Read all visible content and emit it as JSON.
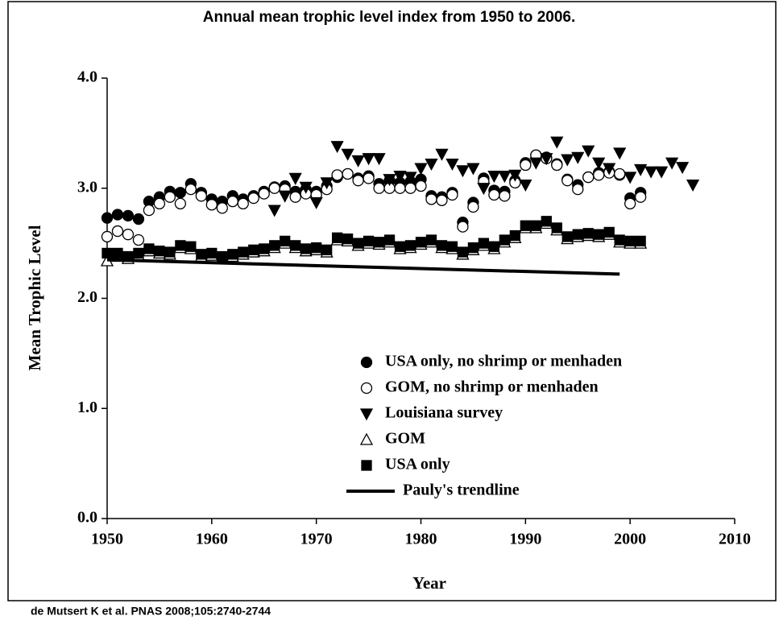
{
  "chart_data": {
    "type": "scatter",
    "title": "Annual mean trophic level index from 1950 to 2006.",
    "xlabel": "Year",
    "ylabel": "Mean Trophic Level",
    "source": "de Mutsert K et al. PNAS 2008;105:2740-2744",
    "xlim": [
      1950,
      2010
    ],
    "xticks": [
      1950,
      1960,
      1970,
      1980,
      1990,
      2000,
      2010
    ],
    "ylim": [
      0,
      4
    ],
    "yticks": [
      {
        "value": 0,
        "label": "0.0"
      },
      {
        "value": 1,
        "label": "1.0"
      },
      {
        "value": 2,
        "label": "2.0"
      },
      {
        "value": 3,
        "label": "3.0"
      },
      {
        "value": 4,
        "label": "4.0"
      }
    ],
    "legend": "lower right",
    "series": [
      {
        "name": "USA only, no shrimp or menhaden",
        "marker": "circle",
        "color": "#000000",
        "filled": true,
        "x": [
          1950,
          1951,
          1952,
          1953,
          1954,
          1955,
          1956,
          1957,
          1958,
          1959,
          1960,
          1961,
          1962,
          1963,
          1964,
          1965,
          1966,
          1967,
          1968,
          1969,
          1970,
          1971,
          1972,
          1973,
          1974,
          1975,
          1976,
          1977,
          1978,
          1979,
          1980,
          1981,
          1982,
          1983,
          1984,
          1985,
          1986,
          1987,
          1988,
          1989,
          1990,
          1991,
          1992,
          1993,
          1994,
          1995,
          1996,
          1997,
          1998,
          1999,
          2000,
          2001
        ],
        "values": [
          2.73,
          2.76,
          2.75,
          2.72,
          2.88,
          2.92,
          2.97,
          2.96,
          3.04,
          2.96,
          2.9,
          2.88,
          2.93,
          2.9,
          2.93,
          2.97,
          3.01,
          3.02,
          2.97,
          2.99,
          2.97,
          3.02,
          3.1,
          3.13,
          3.09,
          3.11,
          3.04,
          3.07,
          3.05,
          3.06,
          3.08,
          2.93,
          2.92,
          2.96,
          2.69,
          2.87,
          3.09,
          2.98,
          2.97,
          3.07,
          3.23,
          3.3,
          3.28,
          3.22,
          3.08,
          3.03,
          3.1,
          3.14,
          3.15,
          3.12,
          2.91,
          2.96
        ]
      },
      {
        "name": "GOM, no shrimp or menhaden",
        "marker": "circle",
        "color": "#000000",
        "filled": false,
        "x": [
          1950,
          1951,
          1952,
          1953,
          1954,
          1955,
          1956,
          1957,
          1958,
          1959,
          1960,
          1961,
          1962,
          1963,
          1964,
          1965,
          1966,
          1967,
          1968,
          1969,
          1970,
          1971,
          1972,
          1973,
          1974,
          1975,
          1976,
          1977,
          1978,
          1979,
          1980,
          1981,
          1982,
          1983,
          1984,
          1985,
          1986,
          1987,
          1988,
          1989,
          1990,
          1991,
          1992,
          1993,
          1994,
          1995,
          1996,
          1997,
          1998,
          1999,
          2000,
          2001
        ],
        "values": [
          2.56,
          2.61,
          2.58,
          2.53,
          2.8,
          2.86,
          2.92,
          2.86,
          2.99,
          2.93,
          2.85,
          2.82,
          2.88,
          2.86,
          2.91,
          2.95,
          3.0,
          2.99,
          2.92,
          2.95,
          2.94,
          2.99,
          3.12,
          3.13,
          3.07,
          3.09,
          3.0,
          3.0,
          3.0,
          3.0,
          3.02,
          2.9,
          2.89,
          2.94,
          2.65,
          2.83,
          3.06,
          2.94,
          2.93,
          3.05,
          3.21,
          3.3,
          3.27,
          3.21,
          3.07,
          2.99,
          3.1,
          3.12,
          3.14,
          3.13,
          2.86,
          2.92
        ]
      },
      {
        "name": "Louisiana survey",
        "marker": "triangle-down",
        "color": "#000000",
        "filled": true,
        "x": [
          1966,
          1967,
          1968,
          1969,
          1970,
          1971,
          1972,
          1973,
          1974,
          1975,
          1976,
          1977,
          1978,
          1979,
          1980,
          1981,
          1982,
          1983,
          1984,
          1985,
          1986,
          1987,
          1988,
          1989,
          1990,
          1991,
          1992,
          1993,
          1994,
          1995,
          1996,
          1997,
          1998,
          1999,
          2000,
          2001,
          2002,
          2003,
          2004,
          2005,
          2006
        ],
        "values": [
          2.8,
          2.93,
          3.09,
          3.01,
          2.87,
          3.05,
          3.38,
          3.31,
          3.25,
          3.27,
          3.27,
          3.08,
          3.11,
          3.1,
          3.18,
          3.22,
          3.31,
          3.22,
          3.16,
          3.18,
          3.0,
          3.11,
          3.11,
          3.12,
          3.03,
          3.23,
          3.27,
          3.42,
          3.26,
          3.28,
          3.34,
          3.23,
          3.18,
          3.32,
          3.1,
          3.17,
          3.15,
          3.15,
          3.23,
          3.19,
          3.03
        ]
      },
      {
        "name": "GOM",
        "marker": "triangle-up",
        "color": "#000000",
        "filled": false,
        "x": [
          1950,
          1951,
          1952,
          1953,
          1954,
          1955,
          1956,
          1957,
          1958,
          1959,
          1960,
          1961,
          1962,
          1963,
          1964,
          1965,
          1966,
          1967,
          1968,
          1969,
          1970,
          1971,
          1972,
          1973,
          1974,
          1975,
          1976,
          1977,
          1978,
          1979,
          1980,
          1981,
          1982,
          1983,
          1984,
          1985,
          1986,
          1987,
          1988,
          1989,
          1990,
          1991,
          1992,
          1993,
          1994,
          1995,
          1996,
          1997,
          1998,
          1999,
          2000,
          2001
        ],
        "values": [
          2.34,
          2.38,
          2.36,
          2.39,
          2.43,
          2.41,
          2.4,
          2.46,
          2.45,
          2.38,
          2.39,
          2.36,
          2.38,
          2.4,
          2.42,
          2.43,
          2.46,
          2.5,
          2.46,
          2.43,
          2.44,
          2.42,
          2.53,
          2.52,
          2.48,
          2.5,
          2.49,
          2.51,
          2.45,
          2.46,
          2.49,
          2.51,
          2.46,
          2.45,
          2.4,
          2.44,
          2.48,
          2.45,
          2.51,
          2.55,
          2.64,
          2.64,
          2.68,
          2.62,
          2.54,
          2.56,
          2.57,
          2.56,
          2.58,
          2.51,
          2.5,
          2.5
        ]
      },
      {
        "name": "USA only",
        "marker": "square",
        "color": "#000000",
        "filled": true,
        "x": [
          1950,
          1951,
          1952,
          1953,
          1954,
          1955,
          1956,
          1957,
          1958,
          1959,
          1960,
          1961,
          1962,
          1963,
          1964,
          1965,
          1966,
          1967,
          1968,
          1969,
          1970,
          1971,
          1972,
          1973,
          1974,
          1975,
          1976,
          1977,
          1978,
          1979,
          1980,
          1981,
          1982,
          1983,
          1984,
          1985,
          1986,
          1987,
          1988,
          1989,
          1990,
          1991,
          1992,
          1993,
          1994,
          1995,
          1996,
          1997,
          1998,
          1999,
          2000,
          2001
        ],
        "values": [
          2.41,
          2.41,
          2.38,
          2.41,
          2.45,
          2.43,
          2.42,
          2.48,
          2.47,
          2.4,
          2.41,
          2.38,
          2.4,
          2.42,
          2.44,
          2.45,
          2.48,
          2.52,
          2.48,
          2.45,
          2.46,
          2.44,
          2.55,
          2.54,
          2.5,
          2.52,
          2.51,
          2.53,
          2.47,
          2.48,
          2.51,
          2.53,
          2.48,
          2.47,
          2.42,
          2.46,
          2.5,
          2.47,
          2.53,
          2.57,
          2.66,
          2.66,
          2.7,
          2.64,
          2.56,
          2.58,
          2.59,
          2.58,
          2.6,
          2.53,
          2.52,
          2.52
        ]
      },
      {
        "name": "Pauly's trendline",
        "marker": "line",
        "color": "#000000",
        "x": [
          1950,
          1999
        ],
        "values": [
          2.35,
          2.22
        ]
      }
    ]
  }
}
